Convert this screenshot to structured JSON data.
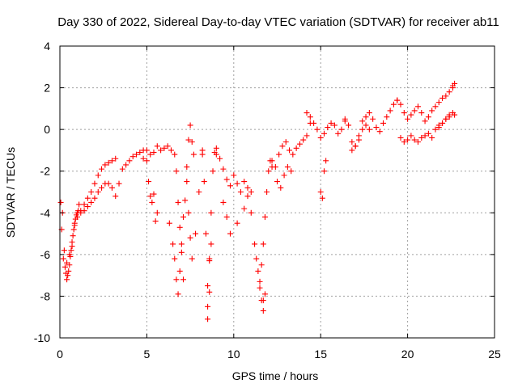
{
  "chart_data": {
    "type": "scatter",
    "title": "Day 330 of 2022, Sidereal Day-to-day VTEC variation (SDTVAR) for receiver ab11",
    "xlabel": "GPS time / hours",
    "ylabel": "SDTVAR / TECUs",
    "xlim": [
      0,
      25
    ],
    "ylim": [
      -10,
      4
    ],
    "xticks": [
      "0",
      "5",
      "10",
      "15",
      "20",
      "25"
    ],
    "yticks": [
      "-10",
      "-8",
      "-6",
      "-4",
      "-2",
      "0",
      "2",
      "4"
    ],
    "grid": true,
    "marker": "plus",
    "color": "#ff0000",
    "series": [
      {
        "name": "SDTVAR",
        "x": [
          0.05,
          0.1,
          0.2,
          0.3,
          0.35,
          0.4,
          0.45,
          0.5,
          0.55,
          0.6,
          0.65,
          0.7,
          0.75,
          0.8,
          0.85,
          0.9,
          0.95,
          1.0,
          1.05,
          1.1,
          0.15,
          0.25,
          0.4,
          0.55,
          0.7,
          0.85,
          1.0,
          1.2,
          1.4,
          1.6,
          1.8,
          2.0,
          2.2,
          2.4,
          2.6,
          2.8,
          3.0,
          3.2,
          1.2,
          1.4,
          1.6,
          1.8,
          2.0,
          2.2,
          2.4,
          2.6,
          2.8,
          3.0,
          3.2,
          3.4,
          3.6,
          3.8,
          4.0,
          4.2,
          4.4,
          4.6,
          4.8,
          4.8,
          5.0,
          5.2,
          5.4,
          5.6,
          5.8,
          6.0,
          6.2,
          6.4,
          6.6,
          5.0,
          5.1,
          5.2,
          5.3,
          5.4,
          5.5,
          5.6,
          6.3,
          6.5,
          6.6,
          6.7,
          6.8,
          6.9,
          7.0,
          7.1,
          7.2,
          7.3,
          7.4,
          7.5,
          7.6,
          7.7,
          6.7,
          6.8,
          6.9,
          7.0,
          7.1,
          7.3,
          7.4,
          7.5,
          7.6,
          7.8,
          8.0,
          8.2,
          8.2,
          8.3,
          8.4,
          8.5,
          8.6,
          8.7,
          8.8,
          8.9,
          9.0,
          8.5,
          8.5,
          8.6,
          8.6,
          8.7,
          9.0,
          9.2,
          9.4,
          9.6,
          9.8,
          10.0,
          10.2,
          10.4,
          10.6,
          10.8,
          11.0,
          9.4,
          9.6,
          9.8,
          10.2,
          10.6,
          10.8,
          11.0,
          11.2,
          11.3,
          11.4,
          11.5,
          11.6,
          11.7,
          11.8,
          11.9,
          12.0,
          12.1,
          12.2,
          11.5,
          11.6,
          11.7,
          11.7,
          11.8,
          12.2,
          12.4,
          12.6,
          12.8,
          13.0,
          13.2,
          13.4,
          13.6,
          13.8,
          14.0,
          14.2,
          14.4,
          12.5,
          12.7,
          12.9,
          13.1,
          13.3,
          14.2,
          14.4,
          14.6,
          14.8,
          15.0,
          15.2,
          15.4,
          15.6,
          15.8,
          16.0,
          16.2,
          16.4,
          15.0,
          15.1,
          15.2,
          15.3,
          16.4,
          16.6,
          16.8,
          17.0,
          17.2,
          17.4,
          17.6,
          17.8,
          18.0,
          18.2,
          18.4,
          18.6,
          18.8,
          19.0,
          19.2,
          19.4,
          16.8,
          17.0,
          17.2,
          17.4,
          17.6,
          17.8,
          19.4,
          19.6,
          19.8,
          20.0,
          20.2,
          20.4,
          20.6,
          20.8,
          21.0,
          21.2,
          21.4,
          21.6,
          21.8,
          22.0,
          22.2,
          22.4,
          22.6,
          19.6,
          19.8,
          20.0,
          20.2,
          20.4,
          20.6,
          20.8,
          21.0,
          21.2,
          21.4,
          21.6,
          21.8,
          22.0,
          22.2,
          22.4,
          22.6,
          22.7,
          21.8,
          22.0,
          22.2,
          22.4,
          22.6,
          22.7
        ],
        "y": [
          -3.5,
          -4.8,
          -6.2,
          -6.6,
          -6.9,
          -7.2,
          -7.0,
          -6.8,
          -6.5,
          -6.1,
          -5.8,
          -5.4,
          -5.1,
          -4.8,
          -4.5,
          -4.3,
          -4.1,
          -4.0,
          -3.9,
          -3.6,
          -4.0,
          -5.8,
          -6.4,
          -6.0,
          -5.6,
          -4.6,
          -4.2,
          -3.9,
          -3.6,
          -3.3,
          -3.0,
          -2.6,
          -2.2,
          -1.9,
          -1.7,
          -1.6,
          -1.5,
          -1.4,
          -4.0,
          -3.9,
          -3.7,
          -3.5,
          -3.3,
          -3.0,
          -2.8,
          -2.6,
          -2.6,
          -2.8,
          -3.2,
          -2.6,
          -1.9,
          -1.7,
          -1.5,
          -1.3,
          -1.2,
          -1.1,
          -1.0,
          -1.4,
          -1.0,
          -1.2,
          -1.1,
          -0.8,
          -1.0,
          -0.9,
          -0.8,
          -1.0,
          -1.2,
          -1.5,
          -2.5,
          -3.2,
          -3.5,
          -3.1,
          -4.4,
          -4.0,
          -4.5,
          -5.5,
          -6.2,
          -7.2,
          -7.9,
          -6.8,
          -5.5,
          -4.2,
          -3.4,
          -1.8,
          -0.5,
          0.2,
          -0.6,
          -1.2,
          -2.0,
          -3.5,
          -4.7,
          -5.9,
          -7.2,
          -2.5,
          -4.0,
          -5.2,
          -6.2,
          -5.0,
          -3.0,
          -1.0,
          -1.2,
          -2.5,
          -5.0,
          -7.5,
          -6.2,
          -4.0,
          -2.0,
          -1.1,
          -0.9,
          -8.5,
          -9.1,
          -7.8,
          -6.3,
          -5.5,
          -1.2,
          -1.4,
          -1.9,
          -2.4,
          -2.7,
          -2.2,
          -2.6,
          -3.0,
          -2.5,
          -2.8,
          -3.0,
          -3.5,
          -4.2,
          -5.0,
          -4.5,
          -3.8,
          -3.2,
          -4.0,
          -5.5,
          -6.2,
          -6.8,
          -7.3,
          -6.5,
          -5.5,
          -4.2,
          -3.0,
          -2.0,
          -1.5,
          -1.8,
          -7.6,
          -8.2,
          -8.7,
          -8.2,
          -7.9,
          -1.5,
          -1.8,
          -1.2,
          -0.8,
          -0.6,
          -1.0,
          -1.2,
          -0.9,
          -0.7,
          -0.5,
          -0.3,
          0.3,
          -2.5,
          -2.8,
          -2.2,
          -1.8,
          -2.0,
          0.8,
          0.6,
          0.3,
          0.0,
          -0.4,
          -0.2,
          0.1,
          0.3,
          0.2,
          -0.2,
          0.0,
          0.4,
          -3.0,
          -3.3,
          -2.0,
          -1.5,
          0.5,
          0.2,
          -0.6,
          -0.8,
          -0.5,
          0.4,
          0.6,
          0.8,
          0.5,
          0.1,
          -0.1,
          0.3,
          0.6,
          0.9,
          1.2,
          1.4,
          -1.0,
          -0.8,
          -0.3,
          0.0,
          0.2,
          0.0,
          1.4,
          1.2,
          0.8,
          0.5,
          0.7,
          0.9,
          1.1,
          0.8,
          0.4,
          0.6,
          0.9,
          1.1,
          1.3,
          1.5,
          1.6,
          1.8,
          2.0,
          -0.4,
          -0.6,
          -0.5,
          -0.3,
          -0.5,
          -0.6,
          -0.4,
          -0.3,
          -0.2,
          -0.4,
          0.0,
          0.2,
          0.3,
          0.5,
          0.7,
          0.8,
          0.7,
          0.1,
          0.3,
          0.5,
          0.6,
          2.1,
          2.2
        ]
      }
    ]
  }
}
